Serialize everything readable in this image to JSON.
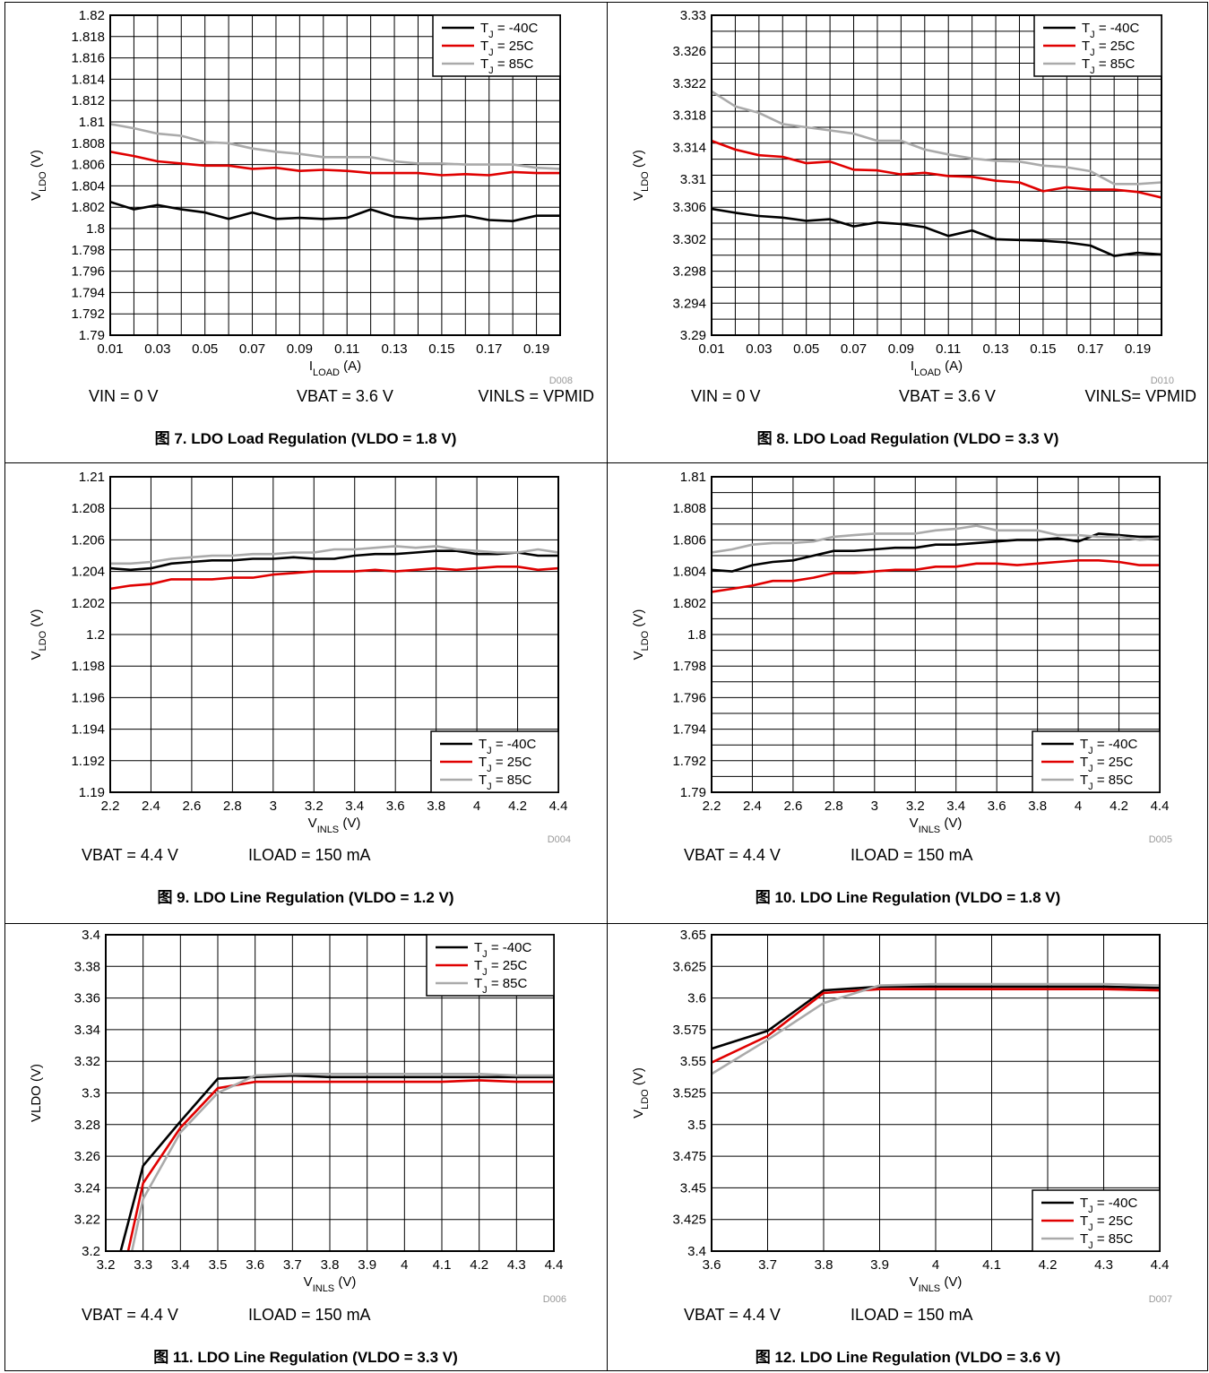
{
  "colors": {
    "tj_m40": "#000000",
    "tj_25": "#e00000",
    "tj_85": "#aaaaaa",
    "grid": "#000000",
    "frame": "#000000"
  },
  "chart_data": [
    {
      "type": "line",
      "figure_code": "D008",
      "caption": "图 7. LDO Load Regulation (VLDO = 1.8 V)",
      "conditions": [
        "VIN = 0 V",
        "VBAT = 3.6 V",
        "VINLS = VPMID"
      ],
      "xlabel": "I_LOAD (A)",
      "ylabel": "V_LDO (V)",
      "xlim": [
        0.01,
        0.2
      ],
      "ylim": [
        1.79,
        1.82
      ],
      "xticks": [
        "0.01",
        "0.03",
        "0.05",
        "0.07",
        "0.09",
        "0.11",
        "0.13",
        "0.15",
        "0.17",
        "0.19"
      ],
      "yticks": [
        "1.79",
        "1.792",
        "1.794",
        "1.796",
        "1.798",
        "1.8",
        "1.802",
        "1.804",
        "1.806",
        "1.808",
        "1.81",
        "1.812",
        "1.814",
        "1.816",
        "1.818",
        "1.82"
      ],
      "legend": "top-right",
      "x": [
        0.01,
        0.02,
        0.03,
        0.04,
        0.05,
        0.06,
        0.07,
        0.08,
        0.09,
        0.1,
        0.11,
        0.12,
        0.13,
        0.14,
        0.15,
        0.16,
        0.17,
        0.18,
        0.19,
        0.2
      ],
      "series": [
        {
          "name": "TJ = -40C",
          "values": [
            1.8025,
            1.8018,
            1.8022,
            1.8018,
            1.8015,
            1.8009,
            1.8015,
            1.8009,
            1.801,
            1.8009,
            1.801,
            1.8018,
            1.8011,
            1.8009,
            1.801,
            1.8012,
            1.8008,
            1.8007,
            1.8012,
            1.8012
          ]
        },
        {
          "name": "TJ = 25C",
          "values": [
            1.8072,
            1.8068,
            1.8063,
            1.8061,
            1.8059,
            1.8059,
            1.8056,
            1.8057,
            1.8054,
            1.8055,
            1.8054,
            1.8052,
            1.8052,
            1.8052,
            1.805,
            1.8051,
            1.805,
            1.8053,
            1.8052,
            1.8052
          ]
        },
        {
          "name": "TJ = 85C",
          "values": [
            1.8098,
            1.8094,
            1.8089,
            1.8087,
            1.8081,
            1.808,
            1.8075,
            1.8072,
            1.807,
            1.8067,
            1.8067,
            1.8067,
            1.8063,
            1.8061,
            1.8061,
            1.806,
            1.806,
            1.806,
            1.8057,
            1.8056
          ]
        }
      ]
    },
    {
      "type": "line",
      "figure_code": "D010",
      "caption": "图 8. LDO Load Regulation (VLDO = 3.3 V)",
      "conditions": [
        "VIN = 0 V",
        "VBAT = 3.6 V",
        "VINLS= VPMID"
      ],
      "xlabel": "I_LOAD (A)",
      "ylabel": "V_LDO (V)",
      "xlim": [
        0.01,
        0.2
      ],
      "ylim": [
        3.29,
        3.33
      ],
      "xticks": [
        "0.01",
        "0.03",
        "0.05",
        "0.07",
        "0.09",
        "0.11",
        "0.13",
        "0.15",
        "0.17",
        "0.19"
      ],
      "yticks": [
        "3.29",
        "3.294",
        "3.298",
        "3.302",
        "3.306",
        "3.31",
        "3.314",
        "3.318",
        "3.322",
        "3.326",
        "3.33"
      ],
      "yticks_values": [
        3.29,
        3.294,
        3.298,
        3.302,
        3.306,
        3.3095,
        3.3135,
        3.3175,
        3.3215,
        3.3255,
        3.33
      ],
      "legend": "top-right",
      "x": [
        0.01,
        0.02,
        0.03,
        0.04,
        0.05,
        0.06,
        0.07,
        0.08,
        0.09,
        0.1,
        0.11,
        0.12,
        0.13,
        0.14,
        0.15,
        0.16,
        0.17,
        0.18,
        0.19,
        0.2
      ],
      "series": [
        {
          "name": "TJ = -40C",
          "values": [
            3.3058,
            3.3053,
            3.3049,
            3.3047,
            3.3043,
            3.3045,
            3.3036,
            3.3041,
            3.3039,
            3.3035,
            3.3024,
            3.3031,
            3.302,
            3.3019,
            3.3018,
            3.3016,
            3.3012,
            3.2999,
            3.3003,
            3.3001
          ]
        },
        {
          "name": "TJ = 25C",
          "values": [
            3.3143,
            3.3132,
            3.3125,
            3.3123,
            3.3115,
            3.3117,
            3.3107,
            3.3106,
            3.3101,
            3.3103,
            3.3099,
            3.3098,
            3.3093,
            3.3091,
            3.308,
            3.3085,
            3.3082,
            3.3082,
            3.3079,
            3.3072
          ]
        },
        {
          "name": "TJ = 85C",
          "values": [
            3.3205,
            3.3186,
            3.3178,
            3.3164,
            3.316,
            3.3156,
            3.3152,
            3.3143,
            3.3143,
            3.3132,
            3.3126,
            3.3121,
            3.3118,
            3.3117,
            3.3112,
            3.311,
            3.3105,
            3.3089,
            3.3089,
            3.3091
          ]
        }
      ]
    },
    {
      "type": "line",
      "figure_code": "D004",
      "caption": "图 9. LDO Line Regulation (VLDO = 1.2 V)",
      "conditions": [
        "VBAT = 4.4 V",
        "ILOAD = 150 mA"
      ],
      "xlabel": "V_INLS (V)",
      "ylabel": "V_LDO (V)",
      "xlim": [
        2.2,
        4.4
      ],
      "ylim": [
        1.19,
        1.21
      ],
      "xticks": [
        "2.2",
        "2.4",
        "2.6",
        "2.8",
        "3",
        "3.2",
        "3.4",
        "3.6",
        "3.8",
        "4",
        "4.2",
        "4.4"
      ],
      "yticks": [
        "1.19",
        "1.192",
        "1.194",
        "1.196",
        "1.198",
        "1.2",
        "1.202",
        "1.204",
        "1.206",
        "1.208",
        "1.21"
      ],
      "legend": "bottom-right",
      "x": [
        2.2,
        2.3,
        2.4,
        2.5,
        2.6,
        2.7,
        2.8,
        2.9,
        3.0,
        3.1,
        3.2,
        3.3,
        3.4,
        3.5,
        3.6,
        3.7,
        3.8,
        3.9,
        4.0,
        4.1,
        4.2,
        4.3,
        4.4
      ],
      "series": [
        {
          "name": "TJ = -40C",
          "values": [
            1.2042,
            1.2041,
            1.2042,
            1.2045,
            1.2046,
            1.2047,
            1.2047,
            1.2048,
            1.2048,
            1.2049,
            1.2048,
            1.2048,
            1.205,
            1.2051,
            1.2051,
            1.2052,
            1.2053,
            1.2053,
            1.2051,
            1.2051,
            1.2052,
            1.205,
            1.205
          ]
        },
        {
          "name": "TJ = 25C",
          "values": [
            1.2029,
            1.2031,
            1.2032,
            1.2035,
            1.2035,
            1.2035,
            1.2036,
            1.2036,
            1.2038,
            1.2039,
            1.204,
            1.204,
            1.204,
            1.2041,
            1.204,
            1.2041,
            1.2042,
            1.2041,
            1.2042,
            1.2043,
            1.2043,
            1.2041,
            1.2042
          ]
        },
        {
          "name": "TJ = 85C",
          "values": [
            1.2045,
            1.2045,
            1.2046,
            1.2048,
            1.2049,
            1.205,
            1.205,
            1.2051,
            1.2051,
            1.2052,
            1.2052,
            1.2054,
            1.2054,
            1.2055,
            1.2056,
            1.2055,
            1.2056,
            1.2054,
            1.2053,
            1.2052,
            1.2052,
            1.2054,
            1.2052
          ]
        }
      ]
    },
    {
      "type": "line",
      "figure_code": "D005",
      "caption": "图 10. LDO Line Regulation (VLDO = 1.8 V)",
      "conditions": [
        "VBAT = 4.4 V",
        "ILOAD = 150 mA"
      ],
      "xlabel": "V_INLS (V)",
      "ylabel": "V_LDO (V)",
      "xlim": [
        2.2,
        4.4
      ],
      "ylim": [
        1.79,
        1.81
      ],
      "xticks": [
        "2.2",
        "2.4",
        "2.6",
        "2.8",
        "3",
        "3.2",
        "3.4",
        "3.6",
        "3.8",
        "4",
        "4.2",
        "4.4"
      ],
      "yticks": [
        "1.79",
        "1.792",
        "1.794",
        "1.796",
        "1.798",
        "1.8",
        "1.802",
        "1.804",
        "1.806",
        "1.808",
        "1.81"
      ],
      "legend": "bottom-right",
      "x": [
        2.2,
        2.3,
        2.4,
        2.5,
        2.6,
        2.7,
        2.8,
        2.9,
        3.0,
        3.1,
        3.2,
        3.3,
        3.4,
        3.5,
        3.6,
        3.7,
        3.8,
        3.9,
        4.0,
        4.1,
        4.2,
        4.3,
        4.4
      ],
      "series": [
        {
          "name": "TJ = -40C",
          "values": [
            1.8041,
            1.804,
            1.8044,
            1.8046,
            1.8047,
            1.805,
            1.8053,
            1.8053,
            1.8054,
            1.8055,
            1.8055,
            1.8057,
            1.8057,
            1.8058,
            1.8059,
            1.806,
            1.806,
            1.8061,
            1.8059,
            1.8064,
            1.8063,
            1.8062,
            1.8062
          ]
        },
        {
          "name": "TJ = 25C",
          "values": [
            1.8027,
            1.8029,
            1.8031,
            1.8034,
            1.8034,
            1.8036,
            1.8039,
            1.8039,
            1.804,
            1.8041,
            1.8041,
            1.8043,
            1.8043,
            1.8045,
            1.8045,
            1.8044,
            1.8045,
            1.8046,
            1.8047,
            1.8047,
            1.8046,
            1.8044,
            1.8044
          ]
        },
        {
          "name": "TJ = 85C",
          "values": [
            1.8052,
            1.8054,
            1.8057,
            1.8058,
            1.8058,
            1.8059,
            1.8062,
            1.8063,
            1.8064,
            1.8064,
            1.8064,
            1.8066,
            1.8067,
            1.8069,
            1.8066,
            1.8066,
            1.8066,
            1.8063,
            1.8063,
            1.8062,
            1.8062,
            1.806,
            1.8061
          ]
        }
      ]
    },
    {
      "type": "line",
      "figure_code": "D006",
      "caption": "图 11. LDO Line Regulation (VLDO = 3.3 V)",
      "conditions": [
        "VBAT = 4.4 V",
        "ILOAD = 150 mA"
      ],
      "xlabel": "V_INLS (V)",
      "ylabel": "VLDO (V)",
      "xlim": [
        3.2,
        4.4
      ],
      "ylim": [
        3.2,
        3.4
      ],
      "xticks": [
        "3.2",
        "3.3",
        "3.4",
        "3.5",
        "3.6",
        "3.7",
        "3.8",
        "3.9",
        "4",
        "4.1",
        "4.2",
        "4.3",
        "4.4"
      ],
      "yticks": [
        "3.2",
        "3.22",
        "3.24",
        "3.26",
        "3.28",
        "3.3",
        "3.32",
        "3.34",
        "3.36",
        "3.38",
        "3.4"
      ],
      "legend": "top-right",
      "series": [
        {
          "name": "TJ = -40C",
          "x": [
            3.24,
            3.3,
            3.4,
            3.5,
            3.6,
            3.7,
            3.8,
            3.9,
            4.0,
            4.1,
            4.2,
            4.3,
            4.4
          ],
          "values": [
            3.2,
            3.254,
            3.282,
            3.309,
            3.31,
            3.311,
            3.31,
            3.31,
            3.31,
            3.31,
            3.31,
            3.31,
            3.31
          ]
        },
        {
          "name": "TJ = 25C",
          "x": [
            3.26,
            3.3,
            3.4,
            3.5,
            3.6,
            3.7,
            3.8,
            3.9,
            4.0,
            4.1,
            4.2,
            4.3,
            4.4
          ],
          "values": [
            3.2,
            3.243,
            3.278,
            3.303,
            3.307,
            3.307,
            3.307,
            3.307,
            3.307,
            3.307,
            3.308,
            3.307,
            3.307
          ]
        },
        {
          "name": "TJ = 85C",
          "x": [
            3.27,
            3.3,
            3.4,
            3.5,
            3.6,
            3.7,
            3.8,
            3.9,
            4.0,
            4.1,
            4.2,
            4.3,
            4.4
          ],
          "values": [
            3.2,
            3.233,
            3.275,
            3.3,
            3.311,
            3.312,
            3.312,
            3.312,
            3.312,
            3.312,
            3.312,
            3.311,
            3.311
          ]
        }
      ]
    },
    {
      "type": "line",
      "figure_code": "D007",
      "caption": "图 12. LDO Line Regulation (VLDO = 3.6 V)",
      "conditions": [
        "VBAT = 4.4 V",
        "ILOAD = 150 mA"
      ],
      "xlabel": "V_INLS (V)",
      "ylabel": "V_LDO (V)",
      "xlim": [
        3.6,
        4.4
      ],
      "ylim": [
        3.4,
        3.65
      ],
      "xticks": [
        "3.6",
        "3.7",
        "3.8",
        "3.9",
        "4",
        "4.1",
        "4.2",
        "4.3",
        "4.4"
      ],
      "yticks": [
        "3.4",
        "3.425",
        "3.45",
        "3.475",
        "3.5",
        "3.525",
        "3.55",
        "3.575",
        "3.6",
        "3.625",
        "3.65"
      ],
      "legend": "bottom-right",
      "x": [
        3.6,
        3.7,
        3.8,
        3.9,
        4.0,
        4.1,
        4.2,
        4.3,
        4.4
      ],
      "series": [
        {
          "name": "TJ = -40C",
          "values": [
            3.56,
            3.574,
            3.606,
            3.609,
            3.609,
            3.609,
            3.609,
            3.609,
            3.608
          ]
        },
        {
          "name": "TJ = 25C",
          "values": [
            3.549,
            3.57,
            3.604,
            3.607,
            3.607,
            3.607,
            3.607,
            3.607,
            3.606
          ]
        },
        {
          "name": "TJ = 85C",
          "values": [
            3.54,
            3.567,
            3.596,
            3.61,
            3.611,
            3.611,
            3.611,
            3.611,
            3.61
          ]
        }
      ]
    }
  ]
}
